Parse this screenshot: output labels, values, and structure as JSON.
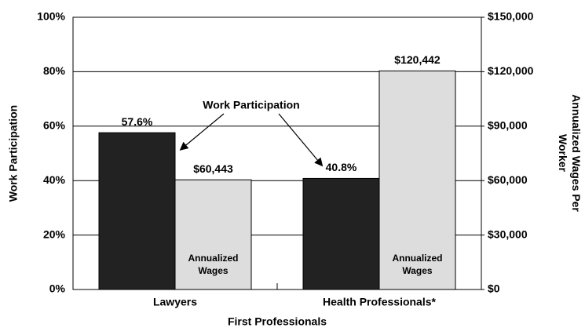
{
  "chart_data": {
    "type": "bar",
    "categories": [
      "Lawyers",
      "Health Professionals*"
    ],
    "series": [
      {
        "name": "Work Participation",
        "color": "#222222",
        "values": [
          57.6,
          40.8
        ],
        "value_labels": [
          "57.6%",
          "40.8%"
        ]
      },
      {
        "name": "Annualized Wages",
        "color": "#dddddd",
        "axis": "y2",
        "values": [
          60443,
          120442
        ],
        "value_labels": [
          "$60,443",
          "$120,442"
        ]
      }
    ],
    "xlabel": "First Professionals",
    "ylabel": "Work Participation",
    "y2label": "Annualized Wages Per Worker",
    "ylim": [
      0,
      100
    ],
    "yticks": [
      {
        "value": 0,
        "label": "0%"
      },
      {
        "value": 20,
        "label": "20%"
      },
      {
        "value": 40,
        "label": "40%"
      },
      {
        "value": 60,
        "label": "60%"
      },
      {
        "value": 80,
        "label": "80%"
      },
      {
        "value": 100,
        "label": "100%"
      }
    ],
    "y2lim": [
      0,
      150000
    ],
    "y2ticks": [
      {
        "value": 0,
        "label": "$0"
      },
      {
        "value": 30000,
        "label": "$30,000"
      },
      {
        "value": 60000,
        "label": "$60,000"
      },
      {
        "value": 90000,
        "label": "$90,000"
      },
      {
        "value": 120000,
        "label": "$120,000"
      },
      {
        "value": 150000,
        "label": "$150,000"
      }
    ],
    "grid": true
  }
}
